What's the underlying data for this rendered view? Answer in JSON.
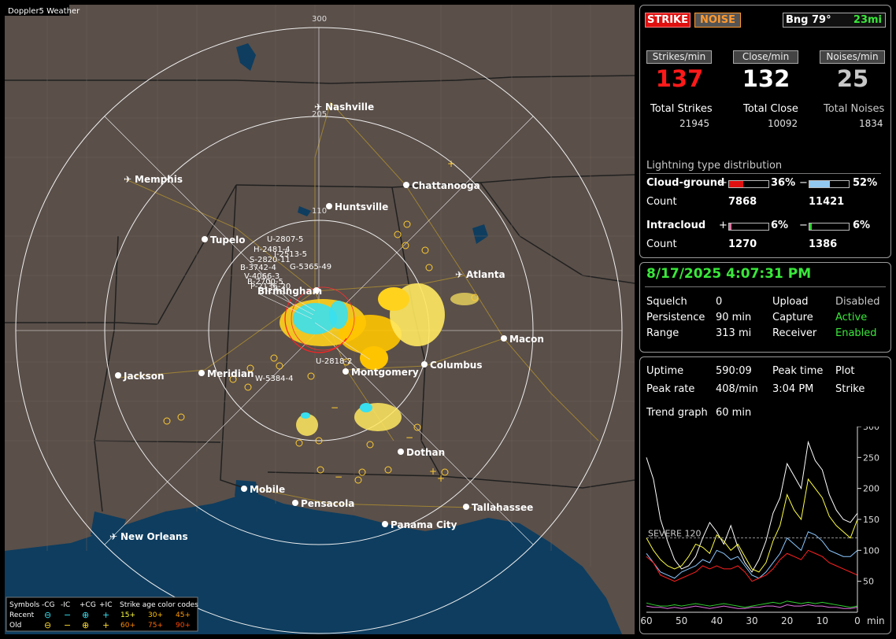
{
  "app_title": "Doppler5 Weather",
  "colors": {
    "land": "#5a4f49",
    "water": "#0e3d5f",
    "accent_green": "#39e83a",
    "strike_red": "#ff1a1a"
  },
  "map": {
    "range_rings": [
      "300",
      "205",
      "110"
    ],
    "cities": [
      "Nashville",
      "Memphis",
      "Chattanooga",
      "Huntsville",
      "Tupelo",
      "Atlanta",
      "Birmingham",
      "Macon",
      "Jackson",
      "Meridian",
      "Montgomery",
      "Columbus",
      "Dothan",
      "Mobile",
      "Pensacola",
      "Tallahassee",
      "Panama City",
      "New Orleans"
    ],
    "storm_labels": [
      "U-2807-5",
      "H-2481-4",
      "I-2513-5",
      "S-2820-11",
      "B-3742-4",
      "G-5365-49",
      "V-4066-3",
      "B-2700-5",
      "P-2136-20",
      "U-2818-2",
      "W-5384-4"
    ]
  },
  "legend": {
    "col_symbols": "Symbols",
    "h_cg_neg": "-CG",
    "h_ic_neg": "-IC",
    "h_cg_pos": "+CG",
    "h_ic_pos": "+IC",
    "h_age": "Strike age color codes",
    "recent": "Recent",
    "old": "Old",
    "sym_cg_neg": "⊖",
    "sym_ic_neg": "−",
    "sym_cg_pos": "⊕",
    "sym_ic_pos": "+",
    "ages_recent": [
      "15+",
      "30+",
      "45+"
    ],
    "ages_old": [
      "60+",
      "75+",
      "90+"
    ]
  },
  "panel1": {
    "strike_btn": "STRIKE",
    "noise_btn": "NOISE",
    "bearing": "Bng 79°",
    "distance": "23mi",
    "strikes_min_label": "Strikes/min",
    "close_min_label": "Close/min",
    "noises_min_label": "Noises/min",
    "strikes_min": "137",
    "close_min": "132",
    "noises_min": "25",
    "total_strikes_label": "Total Strikes",
    "total_close_label": "Total Close",
    "total_noises_label": "Total Noises",
    "total_strikes": "21945",
    "total_close": "10092",
    "total_noises": "1834",
    "dist_title": "Lightning type distribution",
    "cg_label": "Cloud-ground",
    "ic_label": "Intracloud",
    "count_label": "Count",
    "plus": "+",
    "minus": "−",
    "cg_pos_pct": "36%",
    "cg_neg_pct": "52%",
    "cg_pos_count": "7868",
    "cg_neg_count": "11421",
    "ic_pos_pct": "6%",
    "ic_neg_pct": "6%",
    "ic_pos_count": "1270",
    "ic_neg_count": "1386",
    "cg_pos_frac": 0.36,
    "cg_neg_frac": 0.52,
    "ic_pos_frac": 0.06,
    "ic_neg_frac": 0.06
  },
  "panel2": {
    "datetime": "8/17/2025 4:07:31 PM",
    "squelch_label": "Squelch",
    "squelch": "0",
    "persistence_label": "Persistence",
    "persistence": "90 min",
    "range_label": "Range",
    "range": "313 mi",
    "upload_label": "Upload",
    "upload": "Disabled",
    "capture_label": "Capture",
    "capture": "Active",
    "receiver_label": "Receiver",
    "receiver": "Enabled"
  },
  "panel3": {
    "uptime_label": "Uptime",
    "uptime": "590:09",
    "peak_time_label": "Peak time",
    "peak_time": "3:04 PM",
    "plot_label": "Plot",
    "plot": "Strike",
    "peak_rate_label": "Peak rate",
    "peak_rate": "408/min",
    "trend_label": "Trend graph",
    "trend": "60 min"
  },
  "chart_data": {
    "type": "line",
    "xlabel": "min",
    "x_ticks": [
      "60",
      "50",
      "40",
      "30",
      "20",
      "10",
      "0"
    ],
    "y_ticks": [
      "300",
      "250",
      "200",
      "150",
      "100",
      "50"
    ],
    "ylim": [
      0,
      300
    ],
    "xlim": [
      60,
      0
    ],
    "threshold": {
      "label": "SEVERE 120",
      "value": 120
    },
    "x": [
      60,
      58,
      56,
      54,
      52,
      50,
      48,
      46,
      44,
      42,
      40,
      38,
      36,
      34,
      32,
      30,
      28,
      26,
      24,
      22,
      20,
      18,
      16,
      14,
      12,
      10,
      8,
      6,
      4,
      2,
      0
    ],
    "series": [
      {
        "color": "#ffffff",
        "values": [
          250,
          215,
          150,
          115,
          85,
          70,
          75,
          90,
          120,
          145,
          130,
          110,
          140,
          105,
          80,
          65,
          85,
          115,
          160,
          185,
          240,
          220,
          200,
          275,
          245,
          230,
          190,
          165,
          150,
          145,
          160
        ]
      },
      {
        "color": "#ffff40",
        "values": [
          120,
          100,
          85,
          75,
          70,
          75,
          90,
          110,
          105,
          95,
          125,
          115,
          100,
          110,
          90,
          70,
          65,
          80,
          115,
          140,
          190,
          165,
          150,
          215,
          200,
          185,
          155,
          140,
          130,
          120,
          150
        ]
      },
      {
        "color": "#8cc8ff",
        "values": [
          95,
          80,
          65,
          60,
          55,
          65,
          70,
          75,
          85,
          80,
          100,
          95,
          85,
          90,
          75,
          60,
          55,
          65,
          80,
          95,
          120,
          110,
          100,
          130,
          125,
          115,
          100,
          95,
          90,
          90,
          100
        ]
      },
      {
        "color": "#ff2020",
        "values": [
          90,
          80,
          60,
          55,
          50,
          55,
          60,
          65,
          75,
          70,
          75,
          70,
          70,
          75,
          65,
          50,
          55,
          60,
          70,
          85,
          95,
          90,
          85,
          100,
          95,
          90,
          80,
          75,
          70,
          65,
          60
        ]
      },
      {
        "color": "#30d030",
        "values": [
          15,
          12,
          10,
          10,
          12,
          10,
          12,
          14,
          12,
          10,
          12,
          14,
          12,
          10,
          8,
          10,
          12,
          14,
          16,
          14,
          18,
          16,
          14,
          16,
          14,
          16,
          14,
          12,
          10,
          8,
          10
        ]
      },
      {
        "color": "#e070e0",
        "values": [
          10,
          8,
          8,
          6,
          8,
          6,
          8,
          10,
          8,
          6,
          8,
          10,
          8,
          6,
          6,
          8,
          8,
          10,
          10,
          8,
          12,
          10,
          10,
          12,
          10,
          10,
          8,
          8,
          6,
          6,
          8
        ]
      }
    ]
  }
}
